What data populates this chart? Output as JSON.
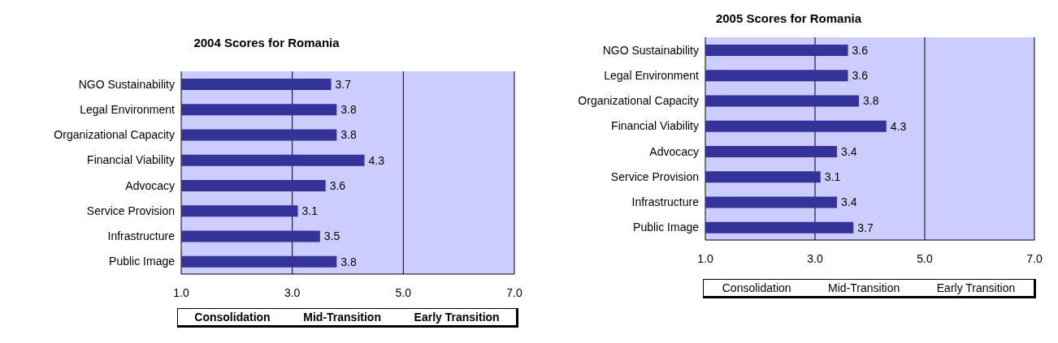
{
  "chart_data": [
    {
      "type": "bar",
      "orientation": "horizontal",
      "title": "2004 Scores for Romania",
      "categories": [
        "NGO Sustainability",
        "Legal Environment",
        "Organizational Capacity",
        "Financial Viability",
        "Advocacy",
        "Service Provision",
        "Infrastructure",
        "Public Image"
      ],
      "values": [
        3.7,
        3.8,
        3.8,
        4.3,
        3.6,
        3.1,
        3.5,
        3.8
      ],
      "color": "#333399",
      "xlim": [
        1,
        7
      ],
      "xticks": [
        {
          "value": 1,
          "label": "1.0"
        },
        {
          "value": 3,
          "label": "3.0"
        },
        {
          "value": 5,
          "label": "5.0"
        },
        {
          "value": 7,
          "label": "7.0"
        }
      ],
      "grid": "x",
      "data_labels": true,
      "legend": false,
      "annotations": [
        "Consolidation",
        "Mid-Transition",
        "Early Transition"
      ]
    },
    {
      "type": "bar",
      "orientation": "horizontal",
      "title": "2005 Scores for Romania",
      "categories": [
        "NGO Sustainability",
        "Legal Environment",
        "Organizational Capacity",
        "Financial Viability",
        "Advocacy",
        "Service Provision",
        "Infrastructure",
        "Public Image"
      ],
      "values": [
        3.6,
        3.6,
        3.8,
        4.3,
        3.4,
        3.1,
        3.4,
        3.7
      ],
      "color": "#333399",
      "xlim": [
        1,
        7
      ],
      "xticks": [
        {
          "value": 1,
          "label": "1.0"
        },
        {
          "value": 3,
          "label": "3.0"
        },
        {
          "value": 5,
          "label": "5.0"
        },
        {
          "value": 7,
          "label": "7.0"
        }
      ],
      "grid": "x",
      "data_labels": true,
      "legend": false,
      "annotations": [
        "Consolidation",
        "Mid-Transition",
        "Early Transition"
      ]
    }
  ]
}
